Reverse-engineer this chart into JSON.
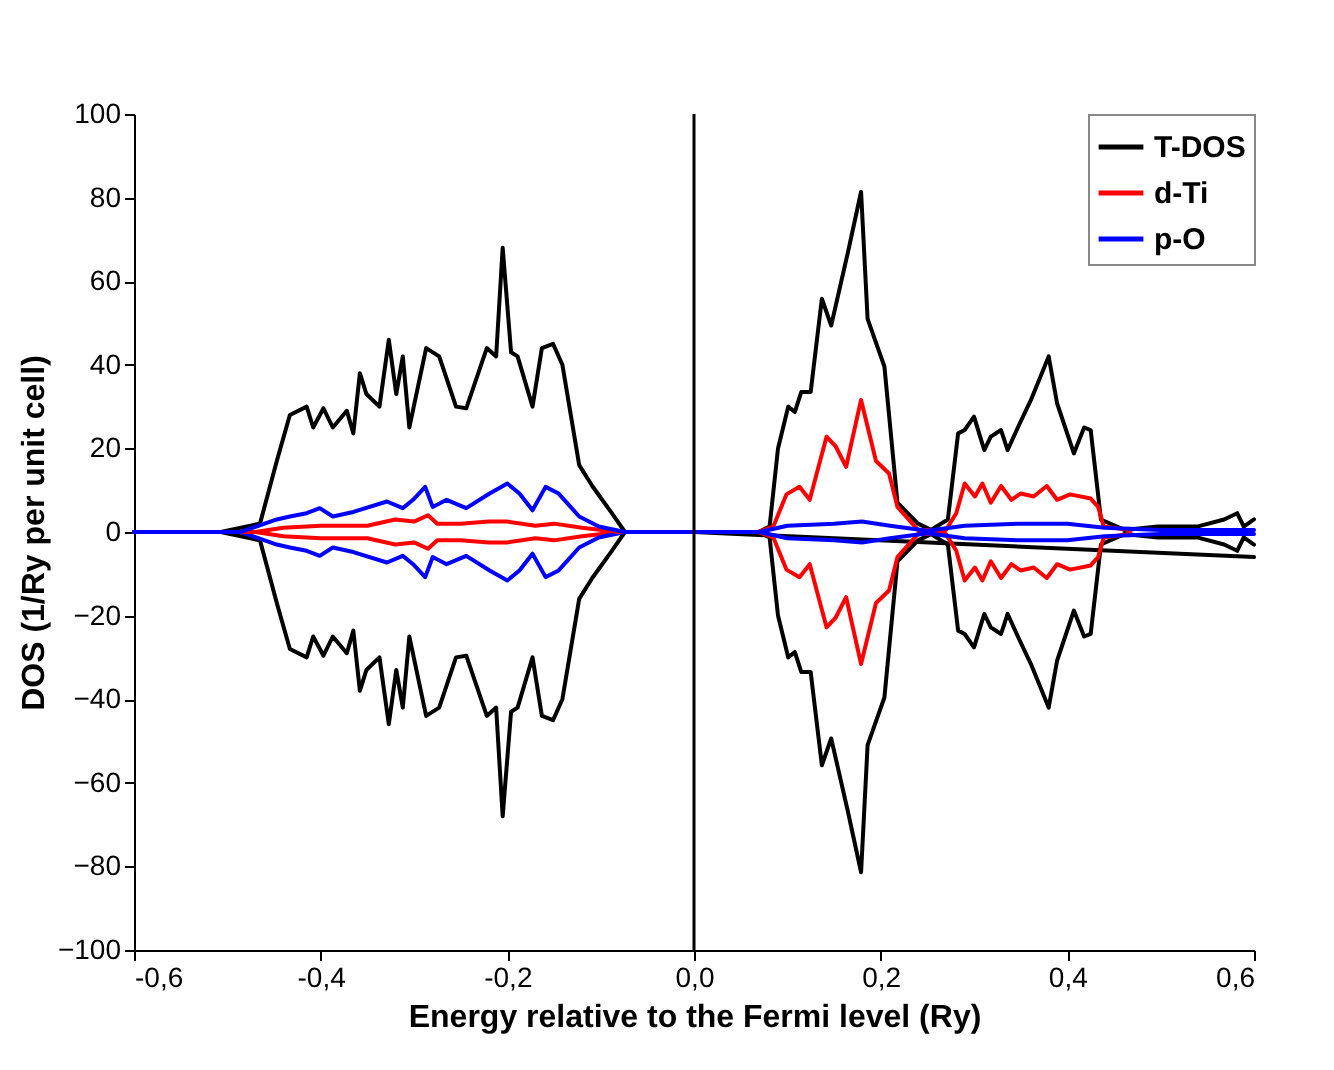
{
  "chart_data": {
    "type": "line",
    "xlabel": "Energy relative to the Fermi level (Ry)",
    "ylabel": "DOS (1/Ry per unit cell)",
    "xlim": [
      -0.6,
      0.6
    ],
    "ylim": [
      -100,
      100
    ],
    "xticks": [
      {
        "value": -0.6,
        "label": "-0,6"
      },
      {
        "value": -0.4,
        "label": "-0,4"
      },
      {
        "value": -0.2,
        "label": "-0,2"
      },
      {
        "value": 0,
        "label": "0,0"
      },
      {
        "value": 0.2,
        "label": "0,2"
      },
      {
        "value": 0.4,
        "label": "0,4"
      },
      {
        "value": 0.6,
        "label": "0,6"
      }
    ],
    "yticks": [
      -100,
      -80,
      -60,
      -40,
      -20,
      0,
      20,
      40,
      60,
      80,
      100
    ],
    "grid": false,
    "legend": "top right",
    "marker": "none",
    "line_style": "solid",
    "ref_lines": [
      {
        "axis": "x",
        "value": 0,
        "color": "#000000"
      }
    ],
    "series": [
      {
        "name": "T-DOS",
        "color": "#000000",
        "x": [
          -0.6,
          -0.507,
          -0.465,
          -0.447,
          -0.433,
          -0.415,
          -0.408,
          -0.397,
          -0.387,
          -0.372,
          -0.365,
          -0.358,
          -0.351,
          -0.337,
          -0.327,
          -0.319,
          -0.312,
          -0.305,
          -0.287,
          -0.273,
          -0.255,
          -0.244,
          -0.222,
          -0.212,
          -0.205,
          -0.196,
          -0.189,
          -0.173,
          -0.163,
          -0.151,
          -0.141,
          -0.123,
          -0.109,
          -0.088,
          -0.074,
          0.069,
          0.081,
          0.09,
          0.101,
          0.108,
          0.115,
          0.125,
          0.137,
          0.147,
          0.165,
          0.179,
          0.186,
          0.204,
          0.218,
          0.24,
          0.254,
          0.272,
          0.283,
          0.29,
          0.3,
          0.311,
          0.318,
          0.329,
          0.336,
          0.347,
          0.361,
          0.38,
          0.389,
          0.407,
          0.418,
          0.425,
          0.436,
          0.461,
          0.497,
          0.539,
          0.568,
          0.582,
          0.589,
          0.6
        ],
        "values": [
          0,
          0,
          2,
          17,
          28,
          30,
          25,
          29.6,
          25,
          29,
          23.6,
          38,
          33,
          30,
          46,
          33,
          42,
          25,
          44,
          42,
          30,
          29.6,
          44,
          42,
          68,
          43,
          42,
          30,
          44,
          45,
          40,
          16,
          11,
          4.5,
          0,
          0,
          1.3,
          20,
          30,
          28.7,
          33.5,
          33.5,
          55.8,
          49.4,
          67,
          81.4,
          51,
          39.6,
          7,
          2,
          0.5,
          3,
          23.6,
          24.4,
          27.6,
          19.6,
          22.8,
          24.4,
          19.6,
          25,
          31.6,
          42,
          30.8,
          18.8,
          25,
          24.4,
          3,
          0.5,
          1.3,
          1.3,
          3,
          4.5,
          1.3,
          3
        ]
      },
      {
        "color": "#000000",
        "x": [
          -0.6,
          -0.507,
          -0.465,
          -0.447,
          -0.433,
          -0.415,
          -0.408,
          -0.397,
          -0.387,
          -0.372,
          -0.365,
          -0.358,
          -0.351,
          -0.337,
          -0.327,
          -0.319,
          -0.312,
          -0.305,
          -0.287,
          -0.273,
          -0.255,
          -0.244,
          -0.222,
          -0.212,
          -0.205,
          -0.196,
          -0.189,
          -0.173,
          -0.163,
          -0.151,
          -0.141,
          -0.123,
          -0.109,
          -0.088,
          -0.074,
          0.069,
          0.081,
          0.09,
          0.101,
          0.108,
          0.115,
          0.125,
          0.137,
          0.147,
          0.165,
          0.179,
          0.186,
          0.204,
          0.218,
          0.24,
          0.254,
          0.272,
          0.283,
          0.29,
          0.3,
          0.311,
          0.318,
          0.329,
          0.336,
          0.347,
          0.361,
          0.38,
          0.389,
          0.407,
          0.418,
          0.425,
          0.436,
          0.461,
          0.497,
          0.539,
          0.568,
          0.582,
          0.589,
          0.6
        ],
        "values": [
          0,
          0,
          -2,
          -17,
          -28,
          -30,
          -25,
          -29.6,
          -25,
          -29,
          -23.6,
          -38,
          -33,
          -30,
          -46,
          -33,
          -42,
          -25,
          -44,
          -42,
          -30,
          -29.6,
          -44,
          -42,
          -68,
          -43,
          -42,
          -30,
          -44,
          -45,
          -40,
          -16,
          -11,
          -4.5,
          0,
          0,
          -1.3,
          -20,
          -30,
          -28.7,
          -33.5,
          -33.5,
          -55.8,
          -49.4,
          -67,
          -81.4,
          -51,
          -39.6,
          -7,
          -2,
          -0.5,
          -3,
          -23.6,
          -24.4,
          -27.6,
          -19.6,
          -22.8,
          -24.4,
          -19.6,
          -25,
          -31.6,
          -42,
          -30.8,
          -18.8,
          -25,
          -24.4,
          -3,
          -0.5,
          -1.3,
          -1.3,
          -3,
          -4.5,
          -1.3,
          -3
        ]
      },
      {
        "color": "#000000",
        "x": [
          0,
          0.6
        ],
        "values": [
          0,
          -6
        ]
      },
      {
        "name": "d-Ti",
        "color": "#ff0000",
        "x": [
          -0.6,
          -0.47,
          -0.44,
          -0.4,
          -0.35,
          -0.32,
          -0.3,
          -0.285,
          -0.275,
          -0.25,
          -0.22,
          -0.2,
          -0.17,
          -0.15,
          -0.12,
          -0.08,
          0.069,
          0.085,
          0.099,
          0.113,
          0.124,
          0.142,
          0.152,
          0.163,
          0.179,
          0.195,
          0.209,
          0.218,
          0.24,
          0.27,
          0.281,
          0.29,
          0.301,
          0.309,
          0.318,
          0.329,
          0.34,
          0.35,
          0.364,
          0.378,
          0.389,
          0.403,
          0.425,
          0.433,
          0.439,
          0.468
        ],
        "values": [
          0,
          0,
          1,
          1.5,
          1.5,
          3,
          2.5,
          4,
          2,
          2,
          2.5,
          2.5,
          1.5,
          2,
          1,
          0,
          0,
          1.3,
          9,
          10.8,
          7.7,
          22.8,
          20.4,
          15.6,
          31.6,
          17,
          14,
          6,
          0.5,
          0.5,
          4.5,
          11.6,
          8.5,
          11.6,
          7,
          11,
          7.7,
          9.2,
          8.5,
          11,
          7.7,
          9,
          8,
          6,
          1.3,
          0.5
        ]
      },
      {
        "color": "#ff0000",
        "x": [
          -0.6,
          -0.47,
          -0.44,
          -0.4,
          -0.35,
          -0.32,
          -0.3,
          -0.285,
          -0.275,
          -0.25,
          -0.22,
          -0.2,
          -0.17,
          -0.15,
          -0.12,
          -0.08,
          0.069,
          0.085,
          0.099,
          0.113,
          0.124,
          0.142,
          0.152,
          0.163,
          0.179,
          0.195,
          0.209,
          0.218,
          0.24,
          0.27,
          0.281,
          0.29,
          0.301,
          0.309,
          0.318,
          0.329,
          0.34,
          0.35,
          0.364,
          0.378,
          0.389,
          0.403,
          0.425,
          0.433,
          0.439,
          0.468
        ],
        "values": [
          0,
          0,
          -1,
          -1.5,
          -1.5,
          -3,
          -2.5,
          -4,
          -2,
          -2,
          -2.5,
          -2.5,
          -1.5,
          -2,
          -1,
          0,
          0,
          -1.3,
          -9,
          -10.8,
          -7.7,
          -22.8,
          -20.4,
          -15.6,
          -31.6,
          -17,
          -14,
          -6,
          -0.5,
          -0.5,
          -4.5,
          -11.6,
          -8.5,
          -11.6,
          -7,
          -11,
          -7.7,
          -9.2,
          -8.5,
          -11,
          -7.7,
          -9,
          -8,
          -6,
          -1.3,
          -0.5
        ]
      },
      {
        "name": "p-O",
        "color": "#0000ff",
        "x": [
          -0.6,
          -0.486,
          -0.447,
          -0.433,
          -0.415,
          -0.401,
          -0.387,
          -0.365,
          -0.329,
          -0.312,
          -0.301,
          -0.288,
          -0.28,
          -0.265,
          -0.244,
          -0.219,
          -0.2,
          -0.187,
          -0.173,
          -0.159,
          -0.145,
          -0.123,
          -0.102,
          -0.074,
          0.07,
          0.1,
          0.15,
          0.18,
          0.21,
          0.25,
          0.29,
          0.35,
          0.4,
          0.44,
          0.5,
          0.6
        ],
        "values": [
          0,
          0,
          3,
          3.7,
          4.5,
          5.7,
          3.7,
          4.8,
          7.3,
          5.7,
          7.7,
          10.8,
          6,
          7.7,
          5.7,
          9.2,
          11.6,
          9.2,
          5.2,
          10.8,
          9.2,
          3.7,
          1.3,
          0,
          0,
          1.5,
          2,
          2.5,
          1.5,
          0.3,
          1.5,
          2,
          2,
          1,
          0.5,
          0.5
        ]
      },
      {
        "color": "#0000ff",
        "x": [
          -0.6,
          -0.486,
          -0.447,
          -0.433,
          -0.415,
          -0.401,
          -0.387,
          -0.365,
          -0.329,
          -0.312,
          -0.301,
          -0.288,
          -0.28,
          -0.265,
          -0.244,
          -0.219,
          -0.2,
          -0.187,
          -0.173,
          -0.159,
          -0.145,
          -0.123,
          -0.102,
          -0.074,
          0.07,
          0.1,
          0.15,
          0.18,
          0.21,
          0.25,
          0.29,
          0.35,
          0.4,
          0.44,
          0.5,
          0.6
        ],
        "values": [
          0,
          0,
          -3,
          -3.7,
          -4.5,
          -5.7,
          -3.7,
          -4.8,
          -7.3,
          -5.7,
          -7.7,
          -10.8,
          -6,
          -7.7,
          -5.7,
          -9.2,
          -11.6,
          -9.2,
          -5.2,
          -10.8,
          -9.2,
          -3.7,
          -1.3,
          0,
          0,
          -1.5,
          -2,
          -2.5,
          -1.5,
          -0.3,
          -1.5,
          -2,
          -2,
          -1,
          -0.5,
          -0.5
        ]
      }
    ]
  }
}
